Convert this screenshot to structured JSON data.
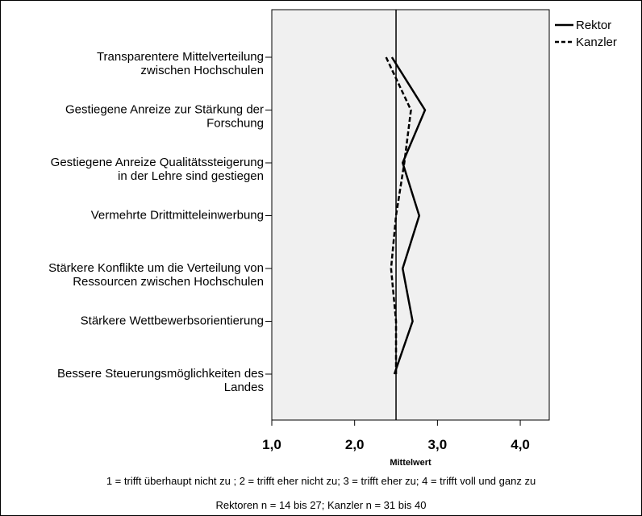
{
  "chart_data": {
    "type": "line",
    "orientation": "horizontal",
    "categories": [
      [
        "Transparentere Mittelverteilung",
        "zwischen Hochschulen"
      ],
      [
        "Gestiegene Anreize zur Stärkung der",
        "Forschung"
      ],
      [
        "Gestiegene Anreize Qualitätssteigerung",
        "in der Lehre sind gestiegen"
      ],
      [
        "Vermehrte Drittmitteleinwerbung"
      ],
      [
        "Stärkere Konflikte um die Verteilung von",
        "Ressourcen zwischen Hochschulen"
      ],
      [
        "Stärkere Wettbewerbsorientierung"
      ],
      [
        "Bessere Steuerungsmöglichkeiten des",
        "Landes"
      ]
    ],
    "series": [
      {
        "name": "Rektor",
        "values": [
          2.45,
          2.85,
          2.58,
          2.78,
          2.58,
          2.7,
          2.48
        ],
        "style": "solid"
      },
      {
        "name": "Kanzler",
        "values": [
          2.38,
          2.68,
          2.6,
          2.5,
          2.44,
          2.5,
          2.5
        ],
        "style": "dashed"
      }
    ],
    "xlim": [
      1.0,
      4.35
    ],
    "xticks": [
      1.0,
      2.0,
      3.0,
      4.0
    ],
    "xtick_labels": [
      "1,0",
      "2,0",
      "3,0",
      "4,0"
    ],
    "reference_line": 2.5,
    "xlabel": "Mittelwert",
    "ylabel": "",
    "legend_placement": "top-right",
    "grid": false,
    "colors": {
      "plot_background": "#f0f0f0",
      "lines": "#000000"
    }
  },
  "notes": {
    "scale": "1 = trifft überhaupt nicht zu ; 2 = trifft eher nicht zu; 3 = trifft eher zu; 4 = trifft voll und ganz zu",
    "sample": "Rektoren n = 14 bis 27; Kanzler n = 31 bis 40"
  }
}
